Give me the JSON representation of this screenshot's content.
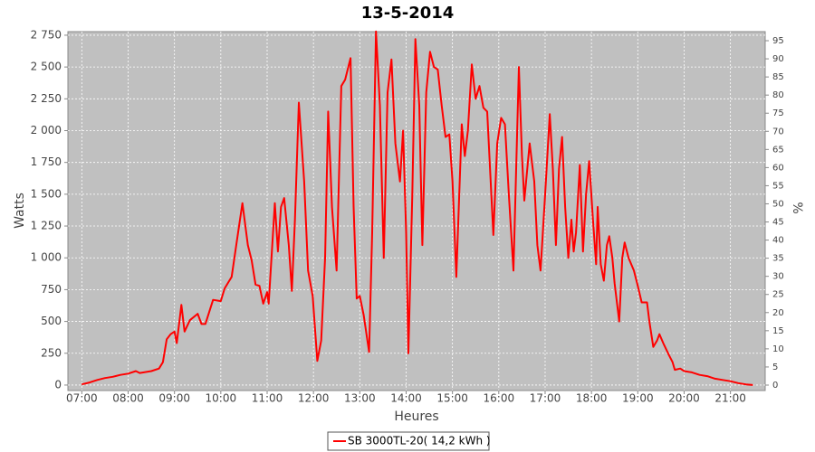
{
  "chart_data": {
    "type": "line",
    "title": "13-5-2014",
    "x_label": "Heures",
    "y_label": "Watts",
    "y2_label": "%",
    "x": [
      "07:00",
      "07:10",
      "07:20",
      "07:30",
      "07:40",
      "07:50",
      "08:00",
      "08:10",
      "08:15",
      "08:30",
      "08:40",
      "08:45",
      "08:50",
      "08:55",
      "09:00",
      "09:03",
      "09:09",
      "09:13",
      "09:20",
      "09:30",
      "09:35",
      "09:40",
      "09:50",
      "10:00",
      "10:05",
      "10:14",
      "10:20",
      "10:28",
      "10:35",
      "10:40",
      "10:45",
      "10:50",
      "10:55",
      "11:00",
      "11:02",
      "11:10",
      "11:14",
      "11:18",
      "11:22",
      "11:28",
      "11:32",
      "11:36",
      "11:41",
      "11:48",
      "11:53",
      "11:59",
      "12:05",
      "12:10",
      "12:15",
      "12:19",
      "12:24",
      "12:30",
      "12:36",
      "12:41",
      "12:48",
      "12:52",
      "12:56",
      "13:00",
      "13:05",
      "13:12",
      "13:16",
      "13:21",
      "13:26",
      "13:31",
      "13:36",
      "13:41",
      "13:46",
      "13:52",
      "13:56",
      "14:00",
      "14:03",
      "14:08",
      "14:12",
      "14:17",
      "14:21",
      "14:26",
      "14:31",
      "14:36",
      "14:41",
      "14:46",
      "14:51",
      "14:56",
      "15:00",
      "15:05",
      "15:12",
      "15:16",
      "15:20",
      "15:25",
      "15:30",
      "15:35",
      "15:40",
      "15:45",
      "15:53",
      "15:58",
      "16:03",
      "16:08",
      "16:13",
      "16:19",
      "16:26",
      "16:30",
      "16:33",
      "16:40",
      "16:46",
      "16:50",
      "16:54",
      "17:00",
      "17:06",
      "17:10",
      "17:14",
      "17:18",
      "17:22",
      "17:26",
      "17:30",
      "17:34",
      "17:37",
      "17:40",
      "17:45",
      "17:49",
      "17:53",
      "17:57",
      "18:02",
      "18:06",
      "18:08",
      "18:12",
      "18:16",
      "18:20",
      "18:23",
      "18:27",
      "18:30",
      "18:36",
      "18:40",
      "18:43",
      "18:48",
      "18:55",
      "19:00",
      "19:05",
      "19:12",
      "19:15",
      "19:20",
      "19:25",
      "19:28",
      "19:33",
      "19:40",
      "19:45",
      "19:48",
      "19:55",
      "20:00",
      "20:10",
      "20:20",
      "20:30",
      "20:40",
      "20:50",
      "21:00",
      "21:10",
      "21:20",
      "21:29"
    ],
    "series": [
      {
        "name": "SB 3000TL-20( 14,2 kWh )",
        "color": "#ff0000",
        "values": [
          5,
          20,
          40,
          55,
          65,
          80,
          90,
          110,
          95,
          110,
          130,
          180,
          360,
          400,
          420,
          330,
          630,
          420,
          510,
          560,
          480,
          480,
          670,
          660,
          760,
          850,
          1100,
          1430,
          1100,
          980,
          790,
          780,
          640,
          730,
          640,
          1430,
          1050,
          1400,
          1470,
          1100,
          740,
          1300,
          2220,
          1600,
          900,
          700,
          190,
          350,
          1000,
          2150,
          1400,
          900,
          2350,
          2400,
          2570,
          1400,
          680,
          700,
          550,
          260,
          1200,
          2780,
          2200,
          1000,
          2300,
          2560,
          1900,
          1600,
          2000,
          1200,
          250,
          1500,
          2720,
          2200,
          1100,
          2300,
          2620,
          2500,
          2480,
          2200,
          1950,
          1970,
          1600,
          850,
          2050,
          1800,
          2000,
          2520,
          2250,
          2350,
          2180,
          2150,
          1180,
          1900,
          2100,
          2050,
          1500,
          900,
          2500,
          1800,
          1450,
          1900,
          1600,
          1100,
          900,
          1500,
          2130,
          1700,
          1100,
          1700,
          1950,
          1400,
          1000,
          1300,
          1050,
          1200,
          1730,
          1050,
          1500,
          1760,
          1300,
          950,
          1400,
          950,
          820,
          1100,
          1170,
          1000,
          800,
          500,
          1000,
          1120,
          1000,
          900,
          780,
          650,
          650,
          500,
          300,
          350,
          400,
          330,
          240,
          180,
          120,
          130,
          110,
          100,
          80,
          70,
          50,
          40,
          30,
          15,
          5,
          0
        ]
      }
    ],
    "xlim": [
      "06:42",
      "21:45"
    ],
    "xticks": [
      "07:00",
      "08:00",
      "09:00",
      "10:00",
      "11:00",
      "12:00",
      "13:00",
      "14:00",
      "15:00",
      "16:00",
      "17:00",
      "18:00",
      "19:00",
      "20:00",
      "21:00"
    ],
    "ylim": [
      -43,
      2778
    ],
    "yticks": [
      0,
      250,
      500,
      750,
      {
        "value": 1000,
        "label": "1 000"
      },
      {
        "value": 1250,
        "label": "1 250"
      },
      {
        "value": 1500,
        "label": "1 500"
      },
      {
        "value": 1750,
        "label": "1 750"
      },
      {
        "value": 2000,
        "label": "2 000"
      },
      {
        "value": 2250,
        "label": "2 250"
      },
      {
        "value": 2500,
        "label": "2 500"
      },
      {
        "value": 2750,
        "label": "2 750"
      }
    ],
    "y2lim": [
      -1.5,
      97.5
    ],
    "y2ticks": [
      0,
      5,
      10,
      15,
      20,
      25,
      30,
      35,
      40,
      45,
      50,
      55,
      60,
      65,
      70,
      75,
      80,
      85,
      90,
      95
    ],
    "grid": true,
    "legend": "bottom"
  }
}
